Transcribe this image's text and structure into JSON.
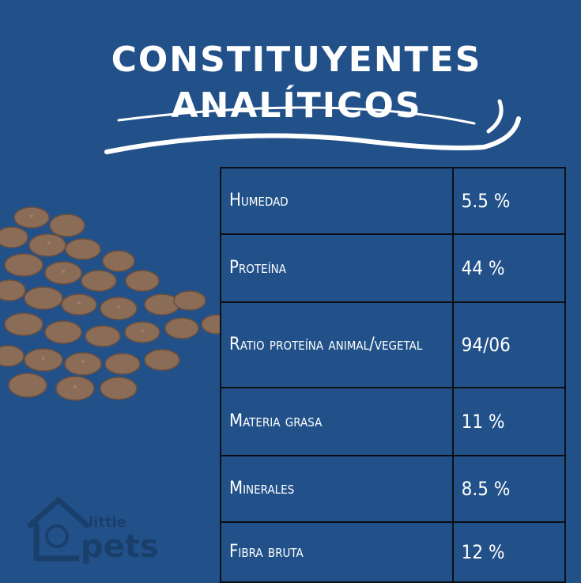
{
  "title": {
    "line1": "CONSTITUYENTES",
    "line2": "ANALÍTICOS"
  },
  "table": {
    "rows": [
      {
        "label": "Humedad",
        "value": "5.5 %"
      },
      {
        "label": "Proteína",
        "value": "44 %"
      },
      {
        "label": "Ratio proteína animal/vegetal",
        "value": "94/06"
      },
      {
        "label": "Materia grasa",
        "value": "11 %"
      },
      {
        "label": "Minerales",
        "value": "8.5 %"
      },
      {
        "label": "Fibra bruta",
        "value": "12 %"
      }
    ]
  },
  "logo": {
    "small": "little",
    "big": "pets"
  },
  "colors": {
    "background": "#22518a",
    "text": "#ffffff",
    "border": "#0b0f14",
    "kibble": "#8a6a55"
  }
}
